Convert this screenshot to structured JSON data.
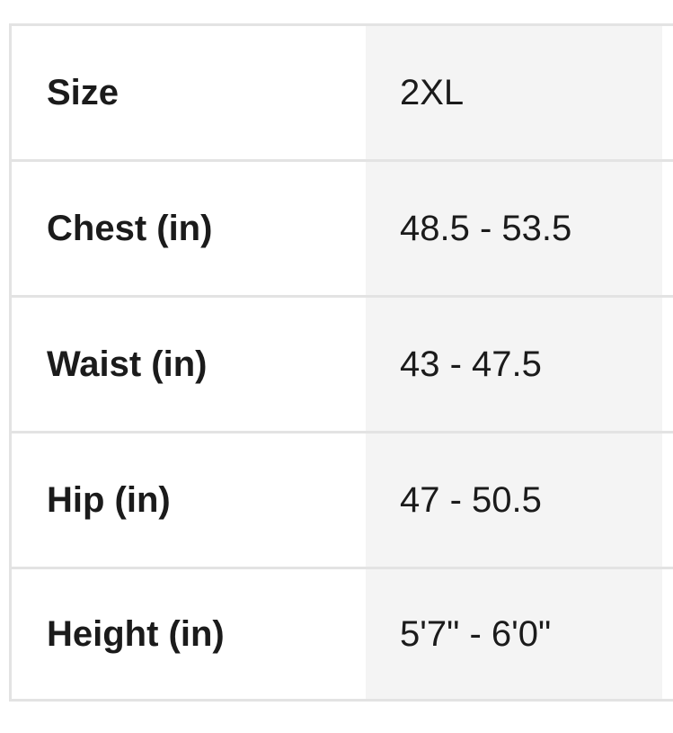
{
  "size_chart": {
    "rows": [
      {
        "label": "Size",
        "value": "2XL"
      },
      {
        "label": "Chest (in)",
        "value": "48.5 - 53.5"
      },
      {
        "label": "Waist (in)",
        "value": "43 - 47.5"
      },
      {
        "label": "Hip (in)",
        "value": "47 - 50.5"
      },
      {
        "label": "Height (in)",
        "value": "5'7\" - 6'0\""
      }
    ],
    "colors": {
      "value_column_bg": "#f4f4f4",
      "divider": "#e3e3e3",
      "text": "#1b1b1b"
    }
  }
}
